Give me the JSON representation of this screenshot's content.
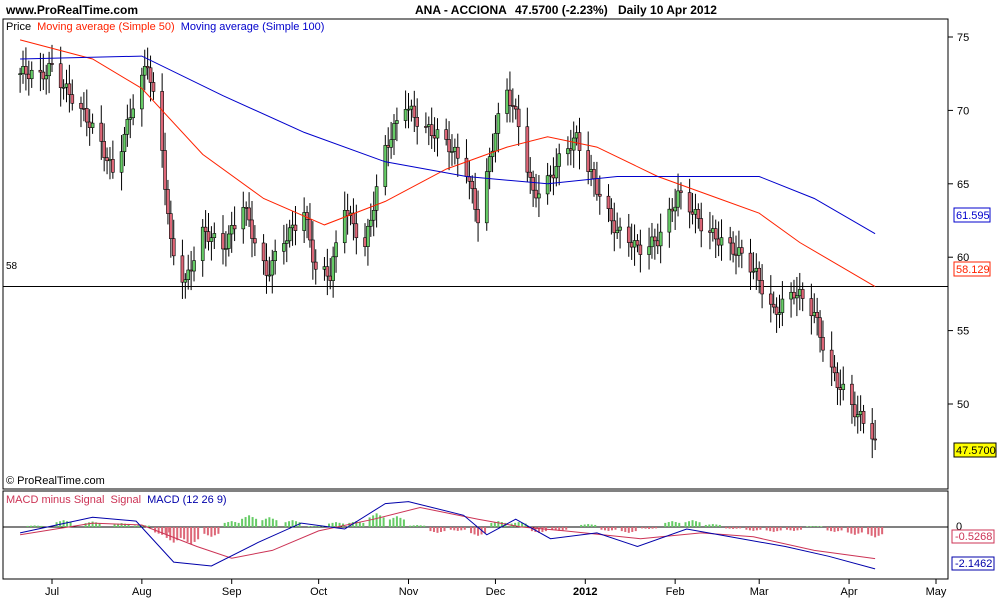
{
  "header": {
    "site": "www.ProRealTime.com",
    "instrument": "ANA - ACCIONA",
    "price_change": "47.5700 (-2.23%)",
    "period": "Daily  10 Apr 2012"
  },
  "price_panel": {
    "legend_price": "Price",
    "legend_ma50": "Moving average (Simple 50)",
    "legend_ma100": "Moving average (Simple 100)",
    "copyright": "© ProRealTime.com",
    "hline_label": "58",
    "badge_ma100": "61.595",
    "badge_ma50": "58.129",
    "badge_price": "47.5700"
  },
  "macd_panel": {
    "legend_hist": "MACD minus Signal",
    "legend_signal": "Signal",
    "legend_macd": "MACD (12 26 9)",
    "zero_label": "0",
    "badge_signal": "-0.5268",
    "badge_macd": "-2.1462"
  },
  "colors": {
    "bull": "#66cc66",
    "bear": "#dd6677",
    "ma50": "#ff2200",
    "ma100": "#0000cc",
    "macd": "#0000aa",
    "signal": "#cc3355",
    "hline": "#000000",
    "price_badge": "#ffff00"
  },
  "chart_data": [
    {
      "type": "candlestick",
      "title": "ANA - ACCIONA",
      "ylim": [
        46,
        77
      ],
      "y_ticks": [
        "75",
        "70",
        "65",
        "60",
        "55",
        "50"
      ],
      "x_ticks": [
        "Jul",
        "Aug",
        "Sep",
        "Oct",
        "Nov",
        "Dec",
        "2012",
        "Feb",
        "Mar",
        "Apr",
        "May"
      ],
      "horizontal_line": 58,
      "last_close": 47.57,
      "close_path": [
        [
          "2011-06-20",
          72.5
        ],
        [
          "2011-06-27",
          72.0
        ],
        [
          "2011-07-01",
          73.2
        ],
        [
          "2011-07-08",
          71.0
        ],
        [
          "2011-07-15",
          68.5
        ],
        [
          "2011-07-22",
          66.0
        ],
        [
          "2011-07-29",
          70.5
        ],
        [
          "2011-08-03",
          73.0
        ],
        [
          "2011-08-08",
          67.0
        ],
        [
          "2011-08-11",
          61.0
        ],
        [
          "2011-08-16",
          58.5
        ],
        [
          "2011-08-22",
          61.5
        ],
        [
          "2011-08-29",
          60.5
        ],
        [
          "2011-09-05",
          64.0
        ],
        [
          "2011-09-09",
          61.0
        ],
        [
          "2011-09-13",
          58.5
        ],
        [
          "2011-09-20",
          61.5
        ],
        [
          "2011-09-26",
          63.5
        ],
        [
          "2011-09-30",
          59.0
        ],
        [
          "2011-10-05",
          58.5
        ],
        [
          "2011-10-10",
          63.5
        ],
        [
          "2011-10-17",
          61.0
        ],
        [
          "2011-10-24",
          67.0
        ],
        [
          "2011-10-31",
          70.5
        ],
        [
          "2011-11-07",
          69.0
        ],
        [
          "2011-11-14",
          67.5
        ],
        [
          "2011-11-21",
          66.0
        ],
        [
          "2011-11-25",
          63.0
        ],
        [
          "2011-12-01",
          68.5
        ],
        [
          "2011-12-05",
          71.0
        ],
        [
          "2011-12-09",
          69.0
        ],
        [
          "2011-12-14",
          64.5
        ],
        [
          "2011-12-20",
          65.5
        ],
        [
          "2011-12-29",
          68.0
        ],
        [
          "2012-01-05",
          65.0
        ],
        [
          "2012-01-12",
          61.5
        ],
        [
          "2012-01-19",
          60.5
        ],
        [
          "2012-01-26",
          61.5
        ],
        [
          "2012-02-02",
          64.0
        ],
        [
          "2012-02-09",
          62.5
        ],
        [
          "2012-02-16",
          61.5
        ],
        [
          "2012-02-23",
          60.0
        ],
        [
          "2012-03-01",
          58.5
        ],
        [
          "2012-03-06",
          56.5
        ],
        [
          "2012-03-13",
          57.5
        ],
        [
          "2012-03-20",
          56.0
        ],
        [
          "2012-03-26",
          52.5
        ],
        [
          "2012-03-30",
          51.0
        ],
        [
          "2012-04-04",
          49.0
        ],
        [
          "2012-04-10",
          47.57
        ]
      ],
      "series": [
        {
          "name": "Moving average (Simple 50)",
          "points": [
            [
              "2011-06-20",
              74.8
            ],
            [
              "2011-07-15",
              73.5
            ],
            [
              "2011-08-01",
              71.5
            ],
            [
              "2011-08-22",
              67.0
            ],
            [
              "2011-09-12",
              64.0
            ],
            [
              "2011-10-03",
              62.2
            ],
            [
              "2011-10-24",
              63.8
            ],
            [
              "2011-11-14",
              66.0
            ],
            [
              "2011-12-05",
              67.5
            ],
            [
              "2011-12-19",
              68.2
            ],
            [
              "2012-01-05",
              67.5
            ],
            [
              "2012-01-26",
              65.5
            ],
            [
              "2012-02-16",
              64.0
            ],
            [
              "2012-03-01",
              63.0
            ],
            [
              "2012-03-15",
              61.0
            ],
            [
              "2012-04-10",
              58.0
            ]
          ]
        },
        {
          "name": "Moving average (Simple 100)",
          "points": [
            [
              "2011-06-20",
              73.5
            ],
            [
              "2011-08-01",
              73.7
            ],
            [
              "2011-08-29",
              71.0
            ],
            [
              "2011-09-26",
              68.5
            ],
            [
              "2011-10-24",
              66.5
            ],
            [
              "2011-11-21",
              65.5
            ],
            [
              "2011-12-19",
              65.0
            ],
            [
              "2012-01-12",
              65.5
            ],
            [
              "2012-02-09",
              65.5
            ],
            [
              "2012-03-01",
              65.5
            ],
            [
              "2012-03-20",
              64.0
            ],
            [
              "2012-04-10",
              61.6
            ]
          ]
        }
      ]
    },
    {
      "type": "line",
      "title": "MACD (12 26 9)",
      "zero_line": 0,
      "series": [
        {
          "name": "MACD",
          "points": [
            [
              "2011-06-20",
              -0.3
            ],
            [
              "2011-07-15",
              0.5
            ],
            [
              "2011-07-30",
              0.3
            ],
            [
              "2011-08-12",
              -1.8
            ],
            [
              "2011-08-25",
              -2.0
            ],
            [
              "2011-09-10",
              -0.8
            ],
            [
              "2011-09-25",
              0.2
            ],
            [
              "2011-10-10",
              -0.1
            ],
            [
              "2011-10-24",
              1.2
            ],
            [
              "2011-11-01",
              1.3
            ],
            [
              "2011-11-20",
              0.6
            ],
            [
              "2011-11-28",
              -0.4
            ],
            [
              "2011-12-08",
              0.4
            ],
            [
              "2011-12-20",
              -0.6
            ],
            [
              "2012-01-05",
              -0.3
            ],
            [
              "2012-01-19",
              -1.0
            ],
            [
              "2012-02-05",
              -0.1
            ],
            [
              "2012-02-20",
              -0.5
            ],
            [
              "2012-03-10",
              -1.0
            ],
            [
              "2012-03-25",
              -1.5
            ],
            [
              "2012-04-10",
              -2.15
            ]
          ]
        },
        {
          "name": "Signal",
          "points": [
            [
              "2011-06-20",
              -0.4
            ],
            [
              "2011-07-15",
              0.2
            ],
            [
              "2011-08-01",
              0.1
            ],
            [
              "2011-08-20",
              -1.0
            ],
            [
              "2011-09-01",
              -1.6
            ],
            [
              "2011-09-15",
              -1.2
            ],
            [
              "2011-10-01",
              -0.2
            ],
            [
              "2011-10-20",
              0.4
            ],
            [
              "2011-11-05",
              1.0
            ],
            [
              "2011-11-25",
              0.4
            ],
            [
              "2011-12-10",
              0.0
            ],
            [
              "2011-12-25",
              -0.2
            ],
            [
              "2012-01-20",
              -0.6
            ],
            [
              "2012-02-10",
              -0.3
            ],
            [
              "2012-02-28",
              -0.5
            ],
            [
              "2012-03-20",
              -1.2
            ],
            [
              "2012-04-10",
              -1.62
            ]
          ]
        },
        {
          "name": "MACD minus Signal",
          "bars": [
            [
              "2011-06-25",
              0.08
            ],
            [
              "2011-07-05",
              0.35
            ],
            [
              "2011-07-15",
              0.28
            ],
            [
              "2011-07-25",
              0.2
            ],
            [
              "2011-08-01",
              0.1
            ],
            [
              "2011-08-08",
              -0.4
            ],
            [
              "2011-08-12",
              -0.8
            ],
            [
              "2011-08-18",
              -0.9
            ],
            [
              "2011-08-25",
              -0.5
            ],
            [
              "2011-09-01",
              0.3
            ],
            [
              "2011-09-07",
              0.6
            ],
            [
              "2011-09-14",
              0.5
            ],
            [
              "2011-09-22",
              0.35
            ],
            [
              "2011-09-30",
              0.05
            ],
            [
              "2011-10-07",
              0.25
            ],
            [
              "2011-10-14",
              0.3
            ],
            [
              "2011-10-21",
              0.7
            ],
            [
              "2011-10-28",
              0.55
            ],
            [
              "2011-11-04",
              0.1
            ],
            [
              "2011-11-11",
              -0.3
            ],
            [
              "2011-11-18",
              -0.2
            ],
            [
              "2011-11-25",
              -0.45
            ],
            [
              "2011-12-02",
              0.3
            ],
            [
              "2011-12-09",
              0.25
            ],
            [
              "2011-12-16",
              -0.3
            ],
            [
              "2011-12-23",
              -0.2
            ],
            [
              "2012-01-02",
              0.15
            ],
            [
              "2012-01-09",
              -0.2
            ],
            [
              "2012-01-16",
              -0.3
            ],
            [
              "2012-01-23",
              -0.1
            ],
            [
              "2012-01-31",
              0.3
            ],
            [
              "2012-02-07",
              0.35
            ],
            [
              "2012-02-14",
              0.15
            ],
            [
              "2012-02-21",
              -0.1
            ],
            [
              "2012-02-28",
              -0.2
            ],
            [
              "2012-03-06",
              -0.25
            ],
            [
              "2012-03-13",
              -0.2
            ],
            [
              "2012-03-20",
              0.05
            ],
            [
              "2012-03-27",
              -0.25
            ],
            [
              "2012-04-03",
              -0.4
            ],
            [
              "2012-04-10",
              -0.53
            ]
          ]
        }
      ]
    }
  ]
}
